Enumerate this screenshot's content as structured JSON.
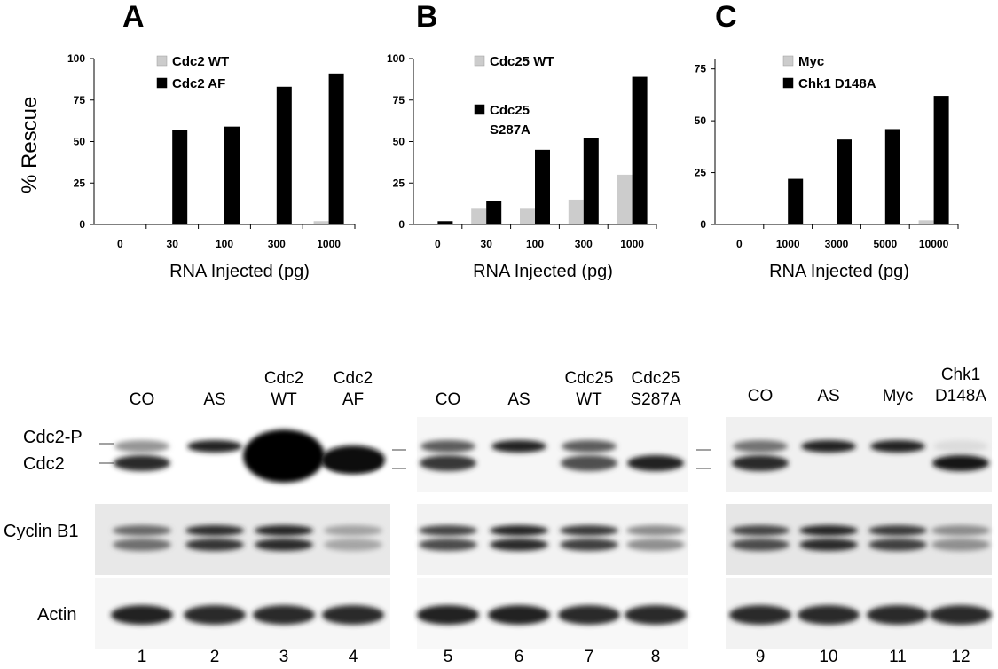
{
  "chart_data": [
    {
      "type": "bar",
      "panel_label": "A",
      "ylabel": "% Rescue",
      "xlabel": "RNA Injected (pg)",
      "ylim": [
        0,
        100
      ],
      "yticks": [
        "0",
        "25",
        "50",
        "75",
        "100"
      ],
      "categories": [
        "0",
        "30",
        "100",
        "300",
        "1000"
      ],
      "legend_position": "top-center",
      "series": [
        {
          "name": "Cdc2 WT",
          "color": "#cccccc",
          "values": [
            0,
            0,
            0,
            0,
            2
          ]
        },
        {
          "name": "Cdc2 AF",
          "color": "#000000",
          "values": [
            0,
            57,
            59,
            83,
            91
          ]
        }
      ]
    },
    {
      "type": "bar",
      "panel_label": "B",
      "xlabel": "RNA Injected (pg)",
      "ylim": [
        0,
        100
      ],
      "yticks": [
        "0",
        "25",
        "50",
        "75",
        "100"
      ],
      "categories": [
        "0",
        "30",
        "100",
        "300",
        "1000"
      ],
      "legend_position": "top-center",
      "series": [
        {
          "name": "Cdc25 WT",
          "color": "#cccccc",
          "values": [
            0,
            10,
            10,
            15,
            30
          ]
        },
        {
          "name": "Cdc25 S287A",
          "color": "#000000",
          "values": [
            2,
            14,
            45,
            52,
            89
          ]
        }
      ]
    },
    {
      "type": "bar",
      "panel_label": "C",
      "xlabel": "RNA Injected (pg)",
      "ylim": [
        0,
        80
      ],
      "yticks": [
        "0",
        "25",
        "50",
        "75"
      ],
      "categories": [
        "0",
        "1000",
        "3000",
        "5000",
        "10000"
      ],
      "legend_position": "top-center",
      "series": [
        {
          "name": "Myc",
          "color": "#cccccc",
          "values": [
            0,
            0,
            0,
            0,
            2
          ]
        },
        {
          "name": "Chk1 D148A",
          "color": "#000000",
          "values": [
            0,
            22,
            41,
            46,
            62
          ]
        }
      ]
    }
  ],
  "blot": {
    "row_labels": {
      "cdc2p": "Cdc2-P",
      "cdc2": "Cdc2",
      "cyclin": "Cyclin B1",
      "actin": "Actin"
    },
    "lane_headers": [
      [
        "CO"
      ],
      [
        "AS"
      ],
      [
        "Cdc2",
        "WT"
      ],
      [
        "Cdc2",
        "AF"
      ],
      [
        "CO"
      ],
      [
        "AS"
      ],
      [
        "Cdc25",
        "WT"
      ],
      [
        "Cdc25",
        "S287A"
      ],
      [
        "CO"
      ],
      [
        "AS"
      ],
      [
        "Myc"
      ],
      [
        "Chk1",
        "D148A"
      ]
    ],
    "lane_numbers": [
      "1",
      "2",
      "3",
      "4",
      "5",
      "6",
      "7",
      "8",
      "9",
      "10",
      "11",
      "12"
    ],
    "bands": {
      "cdc2p": [
        0.45,
        0.95,
        1.0,
        0.0,
        0.7,
        0.95,
        0.7,
        0.0,
        0.6,
        0.95,
        0.95,
        0.15
      ],
      "cdc2": [
        0.9,
        0.0,
        1.0,
        1.0,
        0.85,
        0.0,
        0.75,
        0.95,
        0.9,
        0.0,
        0.0,
        1.0
      ],
      "cyclin": [
        0.65,
        0.9,
        0.95,
        0.4,
        0.8,
        0.95,
        0.85,
        0.5,
        0.8,
        0.95,
        0.85,
        0.5
      ],
      "actin": [
        0.95,
        0.9,
        0.9,
        0.9,
        0.95,
        0.95,
        0.9,
        0.9,
        0.9,
        0.9,
        0.9,
        0.9
      ]
    }
  }
}
